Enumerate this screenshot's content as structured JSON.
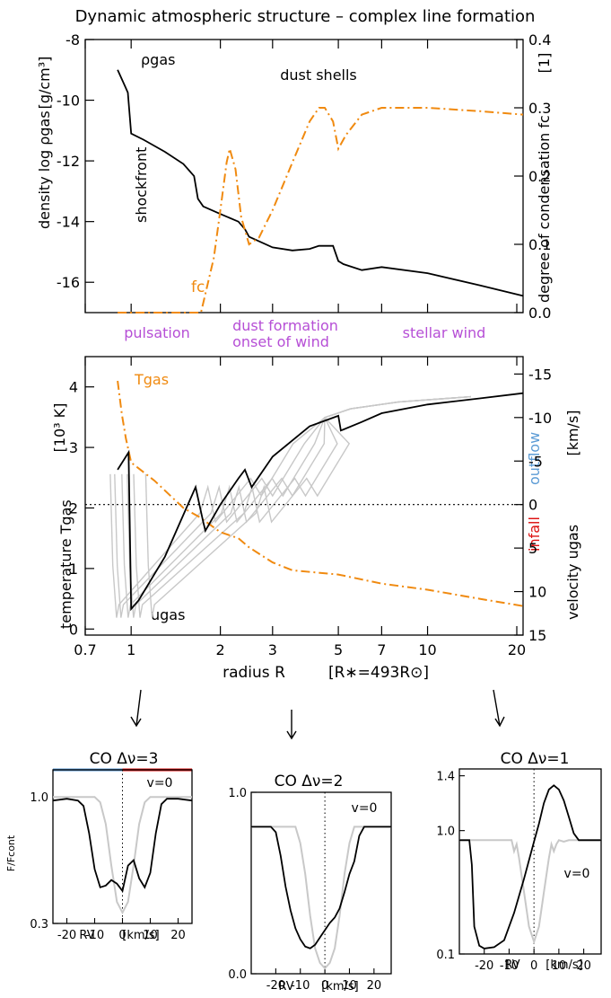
{
  "figure": {
    "title": "Dynamic atmospheric structure – complex line formation",
    "mid_labels": [
      "pulsation",
      "dust formation",
      "onset of wind",
      "stellar wind"
    ],
    "colors": {
      "orange": "#f08a10",
      "purple": "#b64fd6",
      "blue": "#5b9bd5",
      "red": "#dd1111",
      "gray": "#c8c8c8"
    }
  },
  "chart_data": [
    {
      "id": "top",
      "type": "line",
      "x_scale": "log",
      "xlim": [
        0.7,
        21
      ],
      "ylim": [
        -17,
        -8
      ],
      "ylim_right": [
        0.0,
        0.4
      ],
      "ylabel": "density  log ρgas",
      "ylabel_units": "[g/cm³]",
      "ylabel_right": "degree of condensation  fc",
      "ylabel_right_units": "[1]",
      "yticks": [
        -8,
        -10,
        -12,
        -14,
        -16
      ],
      "yticks_right": [
        "0.4",
        "0.3",
        "0.2",
        "0.1",
        "0.0"
      ],
      "annotations": [
        "ρgas",
        "dust shells",
        "shockfront",
        "fc"
      ],
      "series": [
        {
          "name": "rho_gas",
          "axis": "left",
          "x": [
            0.9,
            0.95,
            0.975,
            1.0,
            1.1,
            1.3,
            1.5,
            1.63,
            1.68,
            1.75,
            2.0,
            2.3,
            2.42,
            2.5,
            3.0,
            3.5,
            4.0,
            4.3,
            4.8,
            5.0,
            5.2,
            6.0,
            7.0,
            10.0,
            15.0,
            21.0
          ],
          "y": [
            -9.0,
            -9.5,
            -9.75,
            -11.1,
            -11.3,
            -11.7,
            -12.1,
            -12.5,
            -13.25,
            -13.5,
            -13.75,
            -14.0,
            -14.25,
            -14.5,
            -14.85,
            -14.95,
            -14.9,
            -14.8,
            -14.8,
            -15.3,
            -15.4,
            -15.6,
            -15.5,
            -15.7,
            -16.1,
            -16.45
          ]
        },
        {
          "name": "fc",
          "axis": "right",
          "x": [
            0.9,
            1.5,
            1.72,
            1.9,
            2.0,
            2.1,
            2.15,
            2.25,
            2.35,
            2.5,
            2.7,
            3.0,
            3.5,
            4.0,
            4.3,
            4.5,
            4.8,
            5.0,
            5.3,
            6.0,
            7.0,
            10.0,
            15.0,
            21.0
          ],
          "y": [
            0.0,
            0.0,
            0.0,
            0.08,
            0.15,
            0.22,
            0.24,
            0.21,
            0.14,
            0.1,
            0.11,
            0.15,
            0.22,
            0.28,
            0.3,
            0.3,
            0.28,
            0.24,
            0.26,
            0.29,
            0.3,
            0.3,
            0.295,
            0.29
          ]
        }
      ]
    },
    {
      "id": "middle",
      "type": "line",
      "x_scale": "log",
      "xlim": [
        0.7,
        21
      ],
      "xticks": [
        "0.7",
        "1",
        "2",
        "3",
        "5",
        "7",
        "10",
        "20"
      ],
      "xtick_values": [
        0.7,
        1,
        2,
        3,
        5,
        7,
        10,
        20
      ],
      "xlabel": "radius R",
      "xlabel_units": "[R∗=493R⊙]",
      "ylim": [
        -0.1,
        4.5
      ],
      "yticks": [
        "0",
        "1",
        "2",
        "3",
        "4"
      ],
      "ylim_right": [
        15,
        -17
      ],
      "yticks_right": [
        "-15",
        "-10",
        "-5",
        "0",
        "5",
        "10",
        "15"
      ],
      "ylabel": "temperature  Tgas",
      "ylabel_units": "[10³ K]",
      "ylabel_right": "velocity  ugas",
      "ylabel_right_units": "[km/s]",
      "annotations": [
        "Tgas",
        "ugas",
        "outflow",
        "infall"
      ],
      "series": [
        {
          "name": "Tgas",
          "axis": "left",
          "x": [
            0.9,
            0.93,
            0.96,
            1.0,
            1.2,
            1.5,
            1.7,
            2.0,
            2.3,
            2.5,
            3.0,
            3.5,
            5.0,
            7.0,
            10.0,
            15.0,
            21.0
          ],
          "y": [
            4.1,
            3.55,
            3.15,
            2.75,
            2.45,
            2.0,
            1.85,
            1.6,
            1.5,
            1.35,
            1.1,
            0.97,
            0.9,
            0.75,
            0.65,
            0.5,
            0.38
          ]
        },
        {
          "name": "ugas",
          "axis": "right",
          "x": [
            0.9,
            0.98,
            1.0,
            1.06,
            1.3,
            1.65,
            1.75,
            1.78,
            2.0,
            2.3,
            2.42,
            2.55,
            3.0,
            4.0,
            5.0,
            5.1,
            6.0,
            7.0,
            10.0,
            15.0,
            21.0
          ],
          "y": [
            -4.0,
            -6.0,
            12.0,
            11.0,
            6.0,
            -2.0,
            2.0,
            3.0,
            0.0,
            -3.0,
            -4.0,
            -2.0,
            -5.5,
            -9.0,
            -10.2,
            -8.5,
            -9.5,
            -10.5,
            -11.5,
            -12.2,
            -12.8
          ]
        }
      ]
    },
    {
      "id": "co3",
      "type": "line",
      "title": "CO  Δν=3",
      "xlim": [
        -25,
        25
      ],
      "xticks": [
        "-20",
        "-10",
        "0",
        "10",
        "20"
      ],
      "xlabel": "RV",
      "xlabel_units": "[km/s]",
      "ylim": [
        0.3,
        1.15
      ],
      "yticks": [
        "1.0",
        "0.3"
      ],
      "ylabel": "F/Fcont",
      "annotations": [
        "v=0"
      ],
      "series": [
        {
          "name": "dynamic",
          "x": [
            -25,
            -20,
            -16,
            -14,
            -12,
            -10,
            -8,
            -6,
            -4,
            -2,
            0,
            2,
            4,
            6,
            8,
            10,
            12,
            14,
            16,
            20,
            25
          ],
          "y": [
            0.98,
            0.99,
            0.98,
            0.95,
            0.8,
            0.6,
            0.5,
            0.51,
            0.54,
            0.52,
            0.48,
            0.62,
            0.65,
            0.55,
            0.5,
            0.58,
            0.8,
            0.96,
            0.99,
            0.99,
            0.98
          ]
        },
        {
          "name": "static",
          "x": [
            -25,
            -10,
            -8,
            -6,
            -4,
            -2,
            0,
            2,
            4,
            6,
            8,
            10,
            25
          ],
          "y": [
            1.0,
            1.0,
            0.97,
            0.85,
            0.62,
            0.42,
            0.36,
            0.42,
            0.62,
            0.85,
            0.97,
            1.0,
            1.0
          ]
        }
      ]
    },
    {
      "id": "co2",
      "type": "line",
      "title": "CO  Δν=2",
      "xlim": [
        -30,
        27
      ],
      "xticks": [
        "-20",
        "-10",
        "0",
        "10",
        "20"
      ],
      "xlabel": "RV",
      "xlabel_units": "[km/s]",
      "ylim": [
        0.0,
        1.0
      ],
      "yticks": [
        "1.0",
        "0.0"
      ],
      "annotations": [
        "v=0"
      ],
      "series": [
        {
          "name": "dynamic",
          "x": [
            -30,
            -22,
            -20,
            -18,
            -16,
            -14,
            -12,
            -10,
            -8,
            -6,
            -4,
            -2,
            0,
            2,
            4,
            6,
            8,
            10,
            12,
            14,
            16,
            20,
            27
          ],
          "y": [
            0.81,
            0.81,
            0.78,
            0.65,
            0.48,
            0.35,
            0.25,
            0.19,
            0.15,
            0.14,
            0.16,
            0.2,
            0.24,
            0.28,
            0.31,
            0.36,
            0.45,
            0.55,
            0.62,
            0.76,
            0.81,
            0.81,
            0.81
          ]
        },
        {
          "name": "static",
          "x": [
            -30,
            -12,
            -10,
            -8,
            -6,
            -4,
            -2,
            0,
            2,
            4,
            6,
            8,
            10,
            12,
            27
          ],
          "y": [
            0.81,
            0.81,
            0.72,
            0.55,
            0.32,
            0.14,
            0.06,
            0.03,
            0.06,
            0.14,
            0.32,
            0.55,
            0.72,
            0.81,
            0.81
          ]
        }
      ]
    },
    {
      "id": "co1",
      "type": "line",
      "title": "CO  Δν=1",
      "xlim": [
        -30,
        27
      ],
      "xticks": [
        "-20",
        "-10",
        "0",
        "10",
        "20"
      ],
      "xlabel": "RV",
      "xlabel_units": "[km/s]",
      "ylim": [
        0.1,
        1.45
      ],
      "yticks": [
        "1.4",
        "1.0",
        "0.1"
      ],
      "annotations": [
        "v=0"
      ],
      "series": [
        {
          "name": "dynamic",
          "x": [
            -30,
            -26,
            -25,
            -24,
            -22,
            -20,
            -16,
            -12,
            -8,
            -4,
            0,
            2,
            4,
            6,
            8,
            10,
            12,
            14,
            16,
            18,
            20,
            27
          ],
          "y": [
            0.93,
            0.93,
            0.75,
            0.3,
            0.16,
            0.14,
            0.15,
            0.2,
            0.4,
            0.65,
            0.92,
            1.05,
            1.2,
            1.3,
            1.33,
            1.3,
            1.22,
            1.1,
            0.98,
            0.93,
            0.93,
            0.93
          ]
        },
        {
          "name": "static",
          "x": [
            -30,
            -9,
            -8,
            -7,
            -6,
            -4,
            -2,
            0,
            2,
            4,
            6,
            7,
            8,
            9,
            10,
            12,
            14,
            27
          ],
          "y": [
            0.93,
            0.93,
            0.85,
            0.9,
            0.8,
            0.55,
            0.3,
            0.19,
            0.3,
            0.55,
            0.8,
            0.9,
            0.85,
            0.9,
            0.93,
            0.92,
            0.93,
            0.93
          ]
        }
      ]
    }
  ]
}
